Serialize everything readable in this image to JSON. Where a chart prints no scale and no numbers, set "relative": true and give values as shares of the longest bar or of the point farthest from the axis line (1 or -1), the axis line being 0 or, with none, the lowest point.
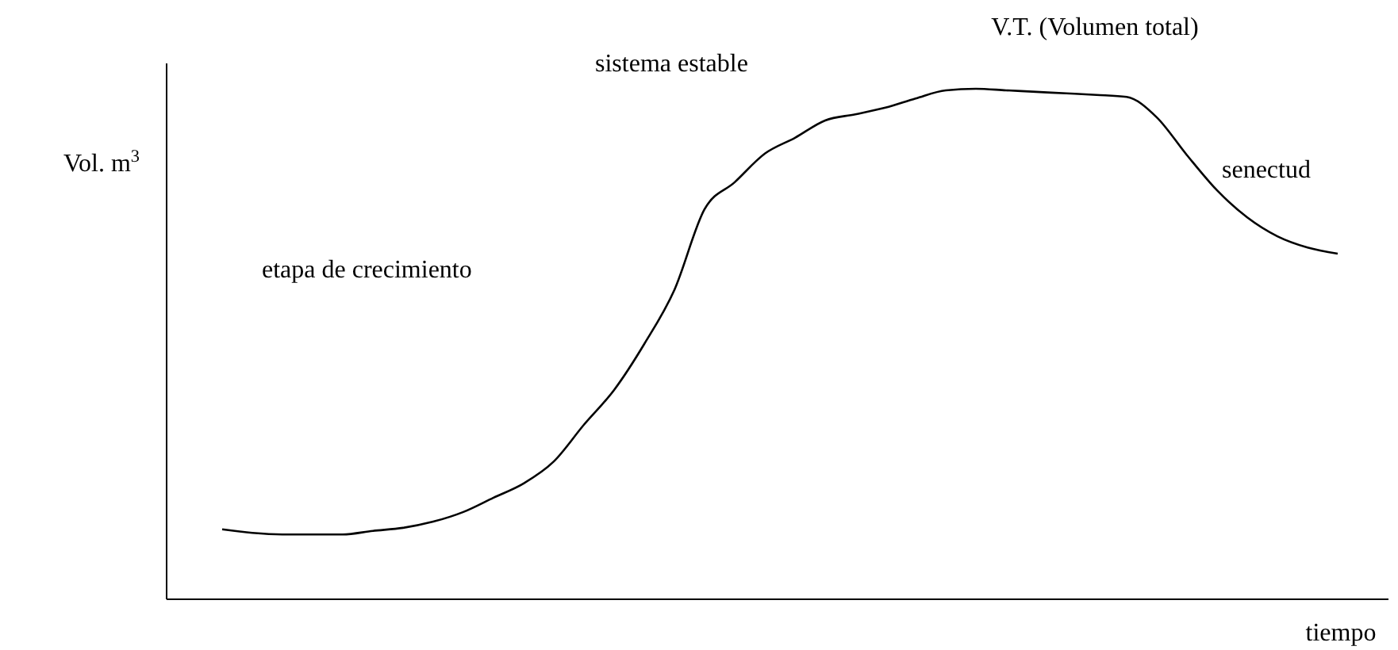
{
  "chart_data": {
    "type": "line",
    "relative": true,
    "ylabel": "Vol. m$^{3}$",
    "xlabel": "tiempo",
    "color": "#000000",
    "annotations": [
      "V.T. (Volumen total)",
      "sistema estable",
      "etapa de crecimiento",
      "senectud"
    ],
    "categories": [
      null,
      null,
      null,
      null,
      null,
      null,
      null,
      null,
      null,
      null,
      null,
      null,
      null,
      null,
      null,
      null,
      null,
      null,
      null,
      null,
      null,
      null,
      null,
      null,
      null,
      null,
      null,
      null,
      null,
      null,
      null,
      null,
      null,
      null,
      null,
      null,
      null,
      null
    ],
    "values": [
      0.137,
      0.13,
      0.127,
      0.127,
      0.127,
      0.134,
      0.14,
      0.152,
      0.171,
      0.199,
      0.227,
      0.27,
      0.342,
      0.41,
      0.5,
      0.606,
      0.764,
      0.817,
      0.873,
      0.904,
      0.938,
      0.95,
      0.963,
      0.981,
      0.997,
      1,
      0.997,
      0.994,
      0.991,
      0.988,
      0.984,
      0.944,
      0.87,
      0.801,
      0.748,
      0.711,
      0.689,
      0.677
    ]
  }
}
